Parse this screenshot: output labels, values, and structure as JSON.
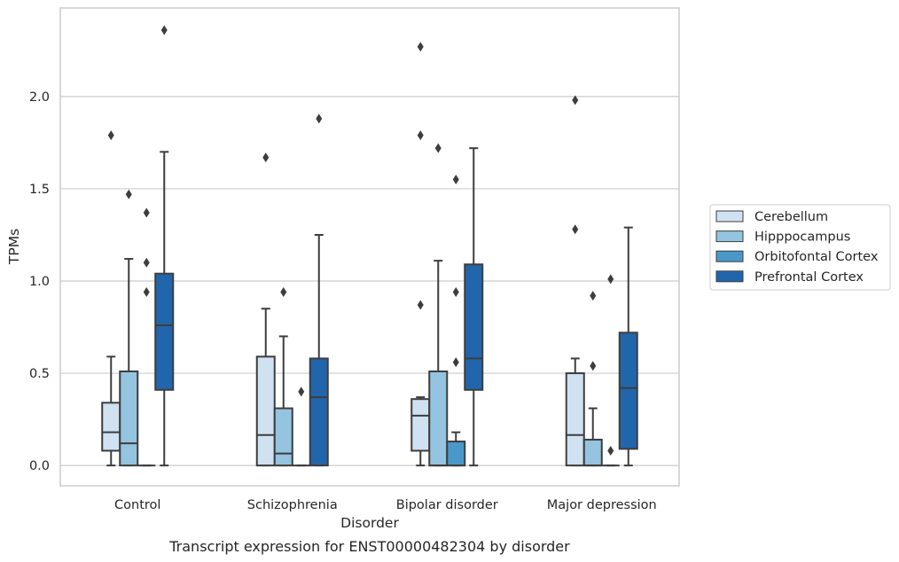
{
  "chart_data": {
    "type": "box",
    "caption": "Transcript expression for ENST00000482304 by disorder",
    "xlabel": "Disorder",
    "ylabel": "TPMs",
    "ylim": [
      -0.11,
      2.48
    ],
    "yticks": [
      0.0,
      0.5,
      1.0,
      1.5,
      2.0
    ],
    "ytick_labels": [
      "0.0",
      "0.5",
      "1.0",
      "1.5",
      "2.0"
    ],
    "grid": "horizontal",
    "legend_position": "right",
    "categories": [
      "Control",
      "Schizophrenia",
      "Bipolar disorder",
      "Major depression"
    ],
    "series": [
      {
        "name": "Cerebellum",
        "color": "#d0e1f2",
        "boxes": [
          {
            "q1": 0.08,
            "median": 0.18,
            "q3": 0.34,
            "whislo": 0.0,
            "whishi": 0.59,
            "fliers": [
              1.79
            ]
          },
          {
            "q1": 0.0,
            "median": 0.165,
            "q3": 0.59,
            "whislo": 0.0,
            "whishi": 0.85,
            "fliers": [
              1.67
            ]
          },
          {
            "q1": 0.08,
            "median": 0.27,
            "q3": 0.36,
            "whislo": 0.0,
            "whishi": 0.37,
            "fliers": [
              0.87,
              1.79,
              2.27
            ]
          },
          {
            "q1": 0.0,
            "median": 0.165,
            "q3": 0.5,
            "whislo": 0.0,
            "whishi": 0.58,
            "fliers": [
              1.28,
              1.98
            ]
          }
        ]
      },
      {
        "name": "Hipppocampus",
        "color": "#94c4df",
        "boxes": [
          {
            "q1": 0.0,
            "median": 0.12,
            "q3": 0.51,
            "whislo": 0.0,
            "whishi": 1.12,
            "fliers": [
              1.47
            ]
          },
          {
            "q1": 0.0,
            "median": 0.065,
            "q3": 0.31,
            "whislo": 0.0,
            "whishi": 0.7,
            "fliers": [
              0.94
            ]
          },
          {
            "q1": 0.0,
            "median": 0.0,
            "q3": 0.51,
            "whislo": 0.0,
            "whishi": 1.11,
            "fliers": [
              1.72
            ]
          },
          {
            "q1": 0.0,
            "median": 0.0,
            "q3": 0.14,
            "whislo": 0.0,
            "whishi": 0.31,
            "fliers": [
              0.54,
              0.92
            ]
          }
        ]
      },
      {
        "name": "Orbitofontal Cortex",
        "color": "#4a98c9",
        "boxes": [
          {
            "q1": 0.0,
            "median": 0.0,
            "q3": 0.0,
            "whislo": 0.0,
            "whishi": 0.0,
            "fliers": [
              0.94,
              1.1,
              1.37
            ]
          },
          {
            "q1": 0.0,
            "median": 0.0,
            "q3": 0.0,
            "whislo": 0.0,
            "whishi": 0.0,
            "fliers": [
              0.4
            ]
          },
          {
            "q1": 0.0,
            "median": 0.0,
            "q3": 0.13,
            "whislo": 0.0,
            "whishi": 0.18,
            "fliers": [
              0.56,
              0.94,
              1.55
            ]
          },
          {
            "q1": 0.0,
            "median": 0.0,
            "q3": 0.0,
            "whislo": 0.0,
            "whishi": 0.0,
            "fliers": [
              0.08,
              1.01
            ]
          }
        ]
      },
      {
        "name": "Prefrontal Cortex",
        "color": "#2166ac",
        "boxes": [
          {
            "q1": 0.41,
            "median": 0.76,
            "q3": 1.04,
            "whislo": 0.0,
            "whishi": 1.7,
            "fliers": [
              2.36
            ]
          },
          {
            "q1": 0.0,
            "median": 0.37,
            "q3": 0.58,
            "whislo": 0.0,
            "whishi": 1.25,
            "fliers": [
              1.88
            ]
          },
          {
            "q1": 0.41,
            "median": 0.58,
            "q3": 1.09,
            "whislo": 0.0,
            "whishi": 1.72,
            "fliers": []
          },
          {
            "q1": 0.09,
            "median": 0.42,
            "q3": 0.72,
            "whislo": 0.0,
            "whishi": 1.29,
            "fliers": []
          }
        ]
      }
    ]
  }
}
